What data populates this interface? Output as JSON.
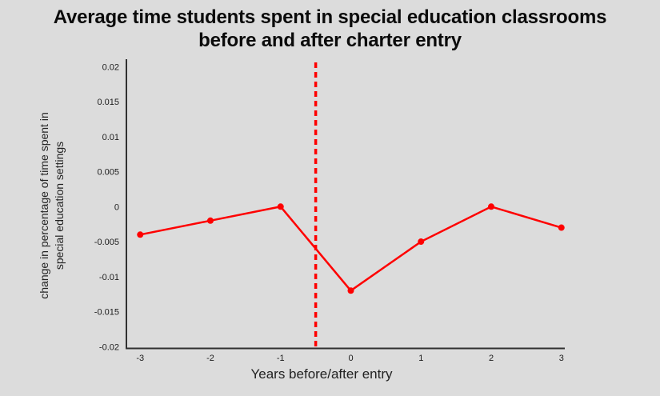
{
  "page": {
    "background_color": "#dcdcdc"
  },
  "title": {
    "line1": "Average time students spent in special education classrooms",
    "line2": "before and after charter entry"
  },
  "chart_data": {
    "type": "line",
    "title": "Average time students spent in special education classrooms before and after charter entry",
    "xlabel": "Years before/after entry",
    "ylabel": "change in percentage of time spent in special education settings",
    "ylabel_lines": [
      "change in percentage of time spent in",
      "special education settings"
    ],
    "x": [
      -3,
      -2,
      -1,
      0,
      1,
      2,
      3
    ],
    "values": [
      -0.004,
      -0.002,
      0,
      -0.012,
      -0.005,
      0,
      -0.003
    ],
    "x_ticks": [
      "-3",
      "-2",
      "-1",
      "0",
      "1",
      "2",
      "3"
    ],
    "y_ticks": [
      "0.02",
      "0.015",
      "0.01",
      "0.005",
      "0",
      "-0.005",
      "-0.01",
      "-0.015",
      "-0.02"
    ],
    "xlim": [
      -3.2,
      3.05
    ],
    "ylim": [
      -0.02,
      0.02
    ],
    "reference_line_x": -0.5,
    "reference_line_style": "dashed",
    "line_color": "#fe0000",
    "marker": "circle",
    "grid": false,
    "legend": "none"
  }
}
